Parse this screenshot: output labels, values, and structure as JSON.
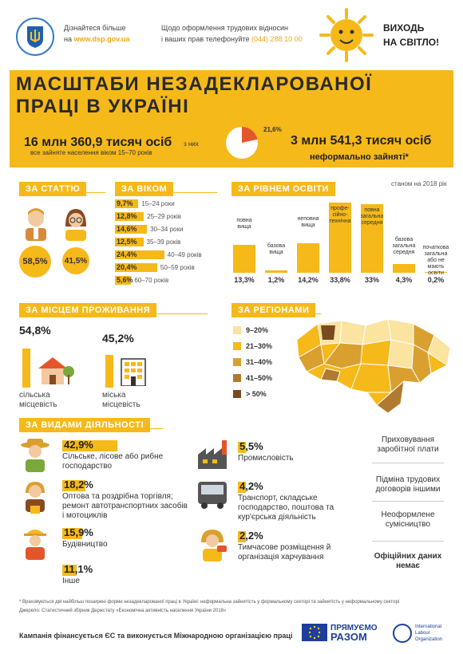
{
  "header": {
    "line1": "Дізнайтеся більше",
    "line2_prefix": "на",
    "site": "www.dsp.gov.ua",
    "info1": "Щодо оформлення трудових відносин",
    "info2_prefix": "і ваших прав телефонуйте",
    "phone": "(044) 288 10 00",
    "slogan1": "ВИХОДЬ",
    "slogan2": "НА СВІТЛО!"
  },
  "title": {
    "line1": "МАСШТАБИ НЕЗАДЕКЛАРОВАНОЇ",
    "line2": "ПРАЦІ В УКРАЇНІ"
  },
  "totals": {
    "total": "16 млн 360,9 тисяч осіб",
    "total_sub": "все зайняте населення віком 15–70 років",
    "of_them": "з них",
    "share": "21,6%",
    "informal": "3 млн 541,3 тисяч осіб",
    "informal_sub": "неформально зайняті*"
  },
  "as_of": "станом на 2018 рік",
  "gender": {
    "title": "ЗА СТАТТЮ",
    "male": "58,5%",
    "female": "41,5%"
  },
  "age": {
    "title": "ЗА ВІКОМ",
    "rows": [
      {
        "pct": "9,7%",
        "label": "15–24 роки",
        "v": 9.7
      },
      {
        "pct": "12,8%",
        "label": "25–29 років",
        "v": 12.8
      },
      {
        "pct": "14,6%",
        "label": "30–34 роки",
        "v": 14.6
      },
      {
        "pct": "12,5%",
        "label": "35–39 років",
        "v": 12.5
      },
      {
        "pct": "24,4%",
        "label": "40–49 років",
        "v": 24.4
      },
      {
        "pct": "20,4%",
        "label": "50–59 років",
        "v": 20.4
      },
      {
        "pct": "5,6%",
        "label": "60–70 років",
        "v": 5.6
      }
    ]
  },
  "education": {
    "title": "ЗА РІВНЕМ ОСВІТИ",
    "items": [
      {
        "label": "повна вища",
        "pct": "13,3%",
        "v": 13.3
      },
      {
        "label": "базова вища",
        "pct": "1,2%",
        "v": 1.2
      },
      {
        "label": "неповна вища",
        "pct": "14,2%",
        "v": 14.2
      },
      {
        "label": "профе-сійно-технічна",
        "pct": "33,8%",
        "v": 33.8
      },
      {
        "label": "повна загальна середня",
        "pct": "33%",
        "v": 33
      },
      {
        "label": "базова загальна середня",
        "pct": "4,3%",
        "v": 4.3
      },
      {
        "label": "початкова загальна або не мають освіти",
        "pct": "0,2%",
        "v": 0.2
      }
    ]
  },
  "residence": {
    "title": "ЗА МІСЦЕМ ПРОЖИВАННЯ",
    "rural_pct": "54,8%",
    "rural_v": 54.8,
    "rural1": "сільська",
    "rural2": "місцевість",
    "urban_pct": "45,2%",
    "urban_v": 45.2,
    "urban1": "міська",
    "urban2": "місцевість"
  },
  "regions": {
    "title": "ЗА РЕГІОНАМИ",
    "legend": [
      {
        "label": "9–20%",
        "color": "#fbe3a0"
      },
      {
        "label": "21–30%",
        "color": "#f6b91a"
      },
      {
        "label": "31–40%",
        "color": "#d9a030"
      },
      {
        "label": "41–50%",
        "color": "#b07a30"
      },
      {
        "label": "> 50%",
        "color": "#7a4a20"
      }
    ]
  },
  "activities": {
    "title": "ЗА ВИДАМИ ДІЯЛЬНОСТІ",
    "left": [
      {
        "pct": "42,9%",
        "text": "Сільське, лісове або рибне господарство",
        "v": 42.9
      },
      {
        "pct": "18,2%",
        "text": "Оптова та роздрібна торгівля; ремонт автотранспортних засобів і мотоциклів",
        "v": 18.2
      },
      {
        "pct": "15,9%",
        "text": "Будівництво",
        "v": 15.9
      },
      {
        "pct": "11,1%",
        "text": "Інше",
        "v": 11.1
      }
    ],
    "mid": [
      {
        "pct": "5,5%",
        "text": "Промисловість",
        "v": 5.5
      },
      {
        "pct": "4,2%",
        "text": "Транспорт, складське господарство, поштова та кур'єрська діяльність",
        "v": 4.2
      },
      {
        "pct": "2,2%",
        "text": "Тимчасове розміщення й організація харчування",
        "v": 2.2
      }
    ]
  },
  "side": {
    "item1": "Приховування заробітної плати",
    "item2": "Підміна трудових договорів іншими",
    "item3": "Неоформлене сумісництво",
    "item4": "Офіційних даних немає"
  },
  "footnote": "* Враховуються дві найбільш поширені форми незадекларованої праці в Україні: неформальна зайнятість у формальному секторі та зайнятість у неформальному секторі",
  "source": "Джерело: Статистичний збірник Держстату «Економічна активність населення України 2018»",
  "footer": {
    "campaign": "Кампанія фінансується ЄС та виконується Міжнародною організацією праці",
    "brand1": "ПРЯМУЄМО",
    "brand2": "РАЗОМ",
    "ilo1": "International",
    "ilo2": "Labour",
    "ilo3": "Organization"
  }
}
